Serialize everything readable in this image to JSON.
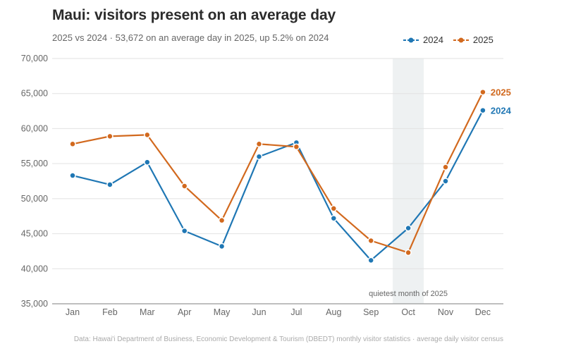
{
  "chart_data": {
    "type": "line",
    "title": "Maui: visitors present on an average day",
    "subtitle": "2025 vs 2024  ·  53,672 on an average day in 2025, up 5.2% on 2024",
    "categories": [
      "Jan",
      "Feb",
      "Mar",
      "Apr",
      "May",
      "Jun",
      "Jul",
      "Aug",
      "Sep",
      "Oct",
      "Nov",
      "Dec"
    ],
    "y_ticks": [
      "35,000",
      "40,000",
      "45,000",
      "50,000",
      "55,000",
      "60,000",
      "65,000",
      "70,000"
    ],
    "ylim": [
      35000,
      70000
    ],
    "grid": true,
    "legend_position": "top-right",
    "series": [
      {
        "name": "2024",
        "color": "#1f77b4",
        "values": [
          53300,
          52000,
          55200,
          45400,
          43200,
          56000,
          58000,
          47200,
          41200,
          45800,
          52500,
          62600
        ],
        "end_label": "2024"
      },
      {
        "name": "2025",
        "color": "#d2691e",
        "values": [
          57800,
          58900,
          59100,
          51800,
          46900,
          57800,
          57400,
          48600,
          44000,
          42300,
          54500,
          65200
        ],
        "end_label": "2025"
      }
    ],
    "highlight": {
      "category": "Oct",
      "label": "quietest month of 2025"
    },
    "source": "Data: Hawai'i Department of Business, Economic Development & Tourism (DBEDT) monthly visitor statistics · average daily visitor census"
  }
}
